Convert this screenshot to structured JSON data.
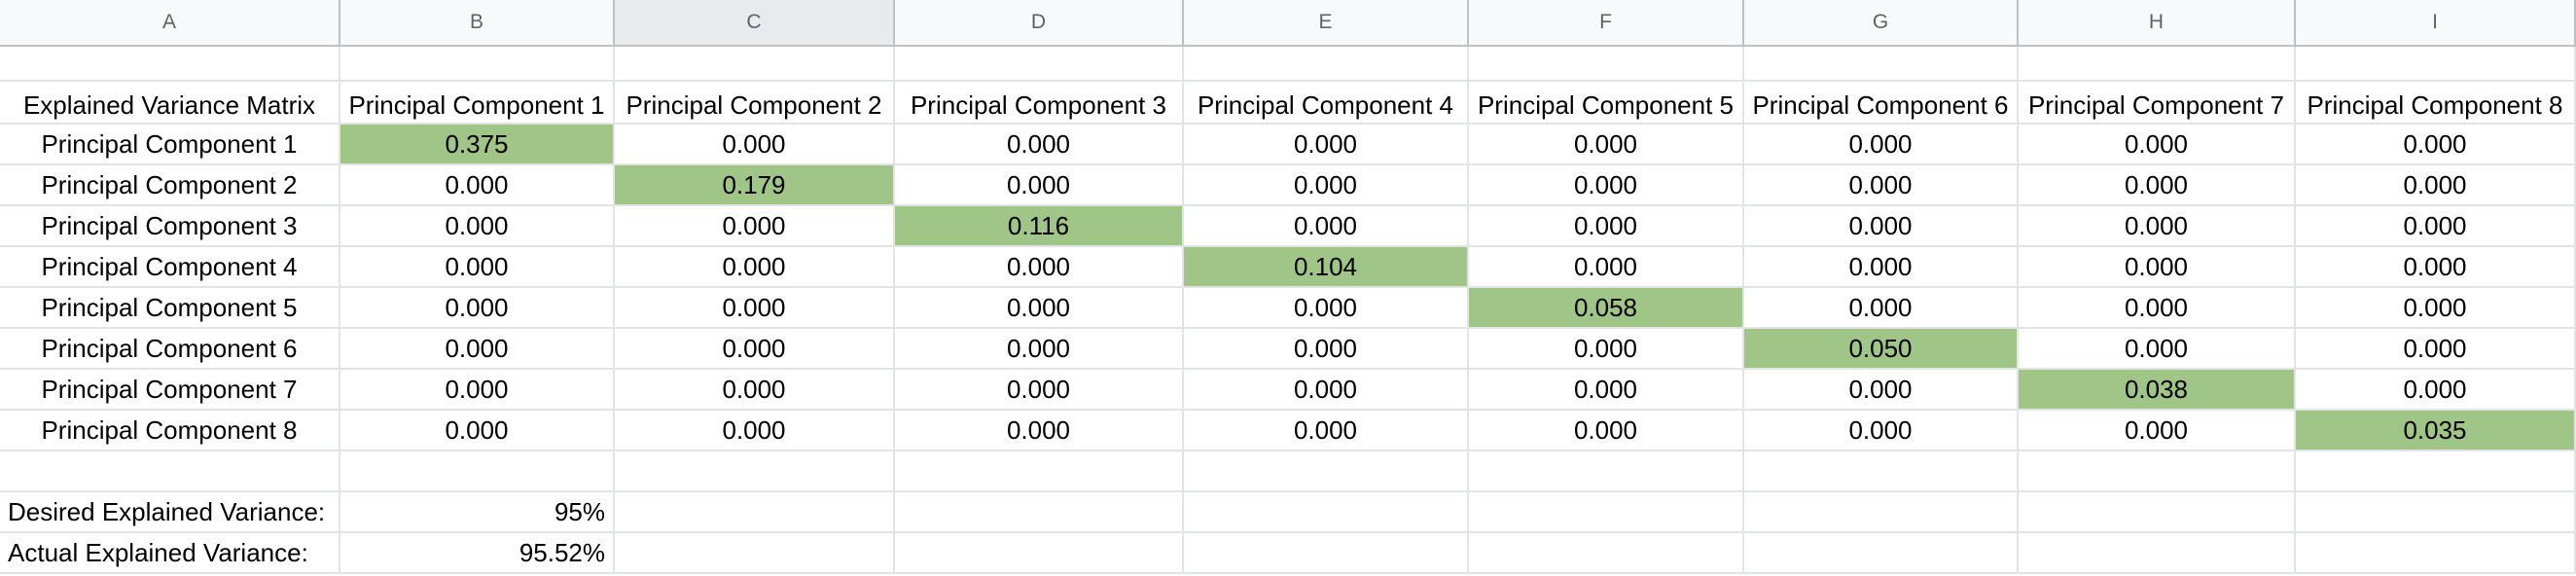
{
  "columns": [
    "A",
    "B",
    "C",
    "D",
    "E",
    "F",
    "G",
    "H",
    "I"
  ],
  "selected_column": "C",
  "matrix": {
    "title": "Explained Variance Matrix",
    "headers": [
      "Principal Component 1",
      "Principal Component 2",
      "Principal Component 3",
      "Principal Component 4",
      "Principal Component 5",
      "Principal Component 6",
      "Principal Component 7",
      "Principal Component 8"
    ],
    "rows": [
      {
        "label": "Principal Component 1",
        "values": [
          "0.375",
          "0.000",
          "0.000",
          "0.000",
          "0.000",
          "0.000",
          "0.000",
          "0.000"
        ]
      },
      {
        "label": "Principal Component 2",
        "values": [
          "0.000",
          "0.179",
          "0.000",
          "0.000",
          "0.000",
          "0.000",
          "0.000",
          "0.000"
        ]
      },
      {
        "label": "Principal Component 3",
        "values": [
          "0.000",
          "0.000",
          "0.116",
          "0.000",
          "0.000",
          "0.000",
          "0.000",
          "0.000"
        ]
      },
      {
        "label": "Principal Component 4",
        "values": [
          "0.000",
          "0.000",
          "0.000",
          "0.104",
          "0.000",
          "0.000",
          "0.000",
          "0.000"
        ]
      },
      {
        "label": "Principal Component 5",
        "values": [
          "0.000",
          "0.000",
          "0.000",
          "0.000",
          "0.058",
          "0.000",
          "0.000",
          "0.000"
        ]
      },
      {
        "label": "Principal Component 6",
        "values": [
          "0.000",
          "0.000",
          "0.000",
          "0.000",
          "0.000",
          "0.050",
          "0.000",
          "0.000"
        ]
      },
      {
        "label": "Principal Component 7",
        "values": [
          "0.000",
          "0.000",
          "0.000",
          "0.000",
          "0.000",
          "0.000",
          "0.038",
          "0.000"
        ]
      },
      {
        "label": "Principal Component 8",
        "values": [
          "0.000",
          "0.000",
          "0.000",
          "0.000",
          "0.000",
          "0.000",
          "0.000",
          "0.035"
        ]
      }
    ]
  },
  "summary": {
    "desired_label": "Desired Explained Variance:",
    "desired_value": "95%",
    "actual_label": "Actual Explained Variance:",
    "actual_value": "95.52%"
  },
  "colors": {
    "highlight": "#9fc587",
    "header_bg": "#f8f9fa",
    "selected_header_bg": "#e8eaed",
    "gridline": "#e2e3e3"
  }
}
